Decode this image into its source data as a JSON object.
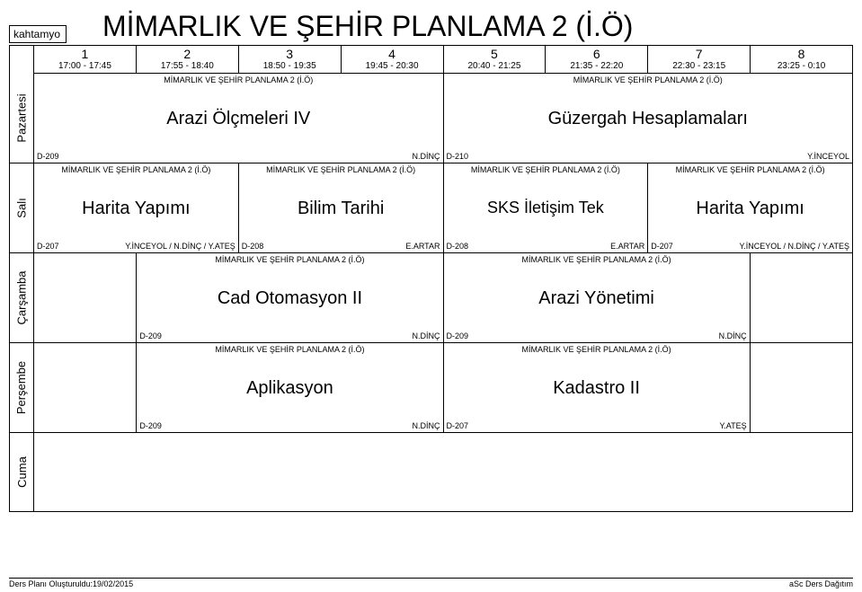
{
  "topLeft": "kahtamyo",
  "title": "MİMARLIK VE ŞEHİR PLANLAMA 2 (İ.Ö)",
  "dept": "MİMARLIK VE ŞEHİR PLANLAMA 2 (İ.Ö)",
  "periods": [
    {
      "n": "1",
      "t": "17:00 - 17:45"
    },
    {
      "n": "2",
      "t": "17:55 - 18:40"
    },
    {
      "n": "3",
      "t": "18:50 - 19:35"
    },
    {
      "n": "4",
      "t": "19:45 - 20:30"
    },
    {
      "n": "5",
      "t": "20:40 - 21:25"
    },
    {
      "n": "6",
      "t": "21:35 - 22:20"
    },
    {
      "n": "7",
      "t": "22:30 - 23:15"
    },
    {
      "n": "8",
      "t": "23:25 - 0:10"
    }
  ],
  "days": {
    "mon": "Pazartesi",
    "tue": "Salı",
    "wed": "Çarşamba",
    "thu": "Perşembe",
    "fri": "Cuma"
  },
  "courses": {
    "arazi4": {
      "name": "Arazi Ölçmeleri IV",
      "room": "D-209",
      "inst": "N.DİNÇ"
    },
    "guzergah": {
      "name": "Güzergah Hesaplamaları",
      "room": "D-210",
      "inst": "Y.İNCEYOL"
    },
    "harita1": {
      "name": "Harita Yapımı",
      "room": "D-207",
      "inst": "Y.İNCEYOL / N.DİNÇ / Y.ATEŞ"
    },
    "bilim": {
      "name": "Bilim Tarihi",
      "room": "D-208",
      "inst": "E.ARTAR"
    },
    "sks": {
      "name": "SKS İletişim Tek",
      "room": "D-208",
      "inst": "E.ARTAR"
    },
    "harita2": {
      "name": "Harita Yapımı",
      "room": "D-207",
      "inst": "Y.İNCEYOL / N.DİNÇ / Y.ATEŞ"
    },
    "cad": {
      "name": "Cad Otomasyon II",
      "room": "D-209",
      "inst": "N.DİNÇ"
    },
    "arazi_yon": {
      "name": "Arazi Yönetimi",
      "room": "D-209",
      "inst": "N.DİNÇ"
    },
    "aplikasyon": {
      "name": "Aplikasyon",
      "room": "D-209",
      "inst": "N.DİNÇ"
    },
    "kadastro": {
      "name": "Kadastro II",
      "room": "D-207",
      "inst": "Y.ATEŞ"
    }
  },
  "footer": {
    "left": "Ders Planı Oluşturuldu:19/02/2015",
    "right": "aSc Ders Dağıtım"
  }
}
